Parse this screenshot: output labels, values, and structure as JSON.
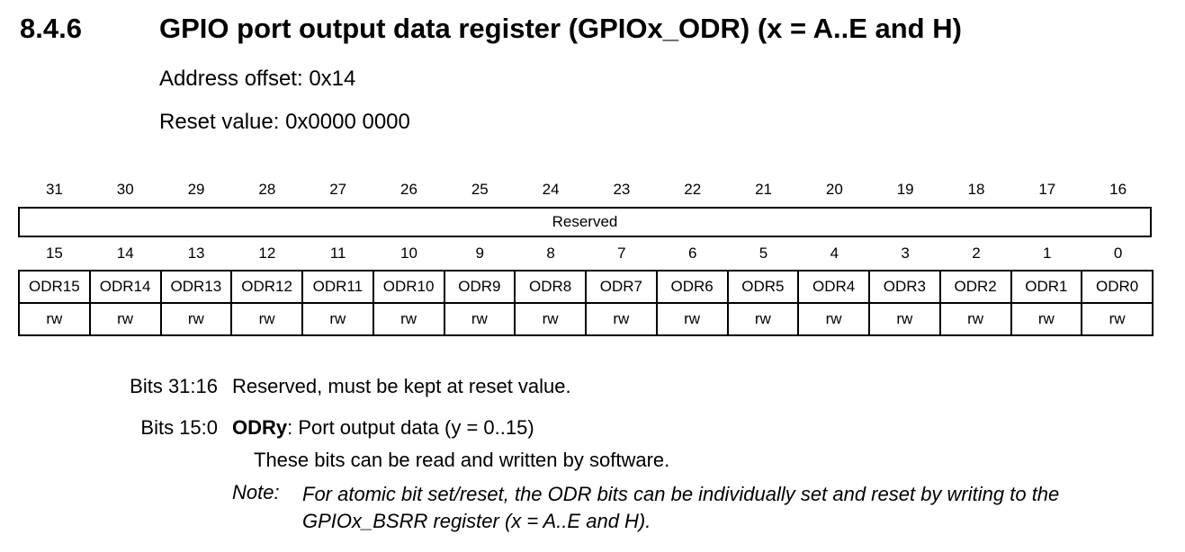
{
  "section": {
    "number": "8.4.6",
    "title": "GPIO port output data register (GPIOx_ODR) (x = A..E and H)",
    "address_offset": "Address offset: 0x14",
    "reset_value": "Reset value: 0x0000 0000"
  },
  "register": {
    "high_bits": [
      "31",
      "30",
      "29",
      "28",
      "27",
      "26",
      "25",
      "24",
      "23",
      "22",
      "21",
      "20",
      "19",
      "18",
      "17",
      "16"
    ],
    "reserved_label": "Reserved",
    "low_bits": [
      "15",
      "14",
      "13",
      "12",
      "11",
      "10",
      "9",
      "8",
      "7",
      "6",
      "5",
      "4",
      "3",
      "2",
      "1",
      "0"
    ],
    "fields": [
      "ODR15",
      "ODR14",
      "ODR13",
      "ODR12",
      "ODR11",
      "ODR10",
      "ODR9",
      "ODR8",
      "ODR7",
      "ODR6",
      "ODR5",
      "ODR4",
      "ODR3",
      "ODR2",
      "ODR1",
      "ODR0"
    ],
    "access": [
      "rw",
      "rw",
      "rw",
      "rw",
      "rw",
      "rw",
      "rw",
      "rw",
      "rw",
      "rw",
      "rw",
      "rw",
      "rw",
      "rw",
      "rw",
      "rw"
    ]
  },
  "descriptions": {
    "d1_label": "Bits 31:16",
    "d1_text": "Reserved, must be kept at reset value.",
    "d2_label": "Bits 15:0",
    "d2_name": "ODRy",
    "d2_text": ": Port output data (y = 0..15)",
    "d2_sub": "These bits can be read and written by software.",
    "note_label": "Note:",
    "note_text": "For atomic bit set/reset, the ODR bits can be individually set and reset by writing to the GPIOx_BSRR register (x = A..E and H)."
  }
}
